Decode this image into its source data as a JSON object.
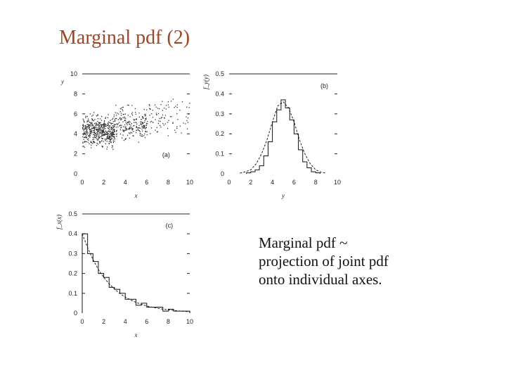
{
  "title": "Marginal pdf  (2)",
  "caption": {
    "lines": [
      "Marginal pdf ~",
      "projection of joint pdf",
      "onto individual axes."
    ]
  },
  "chart_data": [
    {
      "type": "scatter",
      "panel_label": "(a)",
      "xlabel": "x",
      "ylabel": "y",
      "xlim": [
        0,
        10
      ],
      "ylim": [
        0,
        10
      ],
      "xticks": [
        "0",
        "2",
        "4",
        "6",
        "8",
        "10"
      ],
      "yticks": [
        "0",
        "2",
        "4",
        "6",
        "8",
        "10"
      ],
      "marker_color": "#333333",
      "point_groups": [
        {
          "x_range": [
            0,
            3
          ],
          "y_center": 4.3,
          "y_spread": 1.2,
          "count": 520
        },
        {
          "x_range": [
            3,
            6
          ],
          "y_center": 5.0,
          "y_spread": 1.3,
          "count": 220
        },
        {
          "x_range": [
            6,
            10
          ],
          "y_center": 5.8,
          "y_spread": 1.4,
          "count": 90
        }
      ]
    },
    {
      "type": "line",
      "panel_label": "(b)",
      "xlabel": "y",
      "ylabel": "f_y(y)",
      "xlim": [
        0,
        10
      ],
      "ylim": [
        0,
        0.5
      ],
      "xticks": [
        "0",
        "2",
        "4",
        "6",
        "8",
        "10"
      ],
      "yticks": [
        "0",
        "0.1",
        "0.2",
        "0.3",
        "0.4",
        "0.5"
      ],
      "series": [
        {
          "style": "dashed",
          "x": [
            1.0,
            1.5,
            2.0,
            2.5,
            3.0,
            3.5,
            4.0,
            4.5,
            5.0,
            5.5,
            6.0,
            6.5,
            7.0,
            7.5,
            8.0,
            8.5,
            9.0
          ],
          "values": [
            0.003,
            0.01,
            0.02,
            0.05,
            0.1,
            0.17,
            0.26,
            0.34,
            0.36,
            0.33,
            0.26,
            0.17,
            0.1,
            0.05,
            0.02,
            0.008,
            0.003
          ]
        },
        {
          "style": "histogram",
          "bin_width": 0.4,
          "x": [
            1.6,
            2.0,
            2.4,
            2.8,
            3.2,
            3.6,
            4.0,
            4.4,
            4.8,
            5.2,
            5.6,
            6.0,
            6.4,
            6.8,
            7.2,
            7.6,
            8.0
          ],
          "values": [
            0.005,
            0.01,
            0.02,
            0.04,
            0.09,
            0.16,
            0.26,
            0.32,
            0.37,
            0.33,
            0.27,
            0.2,
            0.12,
            0.06,
            0.03,
            0.01,
            0.005
          ]
        }
      ]
    },
    {
      "type": "line",
      "panel_label": "(c)",
      "xlabel": "x",
      "ylabel": "f_x(x)",
      "xlim": [
        0,
        10
      ],
      "ylim": [
        0,
        0.5
      ],
      "xticks": [
        "0",
        "2",
        "4",
        "6",
        "8",
        "10"
      ],
      "yticks": [
        "0",
        "0.1",
        "0.2",
        "0.3",
        "0.4",
        "0.5"
      ],
      "series": [
        {
          "style": "dashed",
          "x": [
            0,
            0.5,
            1,
            1.5,
            2,
            2.5,
            3,
            3.5,
            4,
            4.5,
            5,
            5.5,
            6,
            6.5,
            7,
            7.5,
            8,
            8.5,
            9,
            9.5,
            10
          ],
          "values": [
            0.4,
            0.33,
            0.27,
            0.22,
            0.18,
            0.148,
            0.121,
            0.099,
            0.081,
            0.067,
            0.054,
            0.045,
            0.036,
            0.03,
            0.025,
            0.02,
            0.017,
            0.014,
            0.011,
            0.009,
            0.007
          ]
        },
        {
          "style": "histogram",
          "bin_width": 0.5,
          "x": [
            0,
            0.5,
            1,
            1.5,
            2,
            2.5,
            3,
            3.5,
            4,
            4.5,
            5,
            5.5,
            6,
            6.5,
            7,
            7.5,
            8,
            8.5,
            9,
            9.5
          ],
          "values": [
            0.4,
            0.3,
            0.26,
            0.2,
            0.18,
            0.13,
            0.12,
            0.1,
            0.07,
            0.07,
            0.04,
            0.05,
            0.03,
            0.03,
            0.03,
            0.01,
            0.02,
            0.01,
            0.01,
            0.01
          ]
        }
      ]
    }
  ]
}
